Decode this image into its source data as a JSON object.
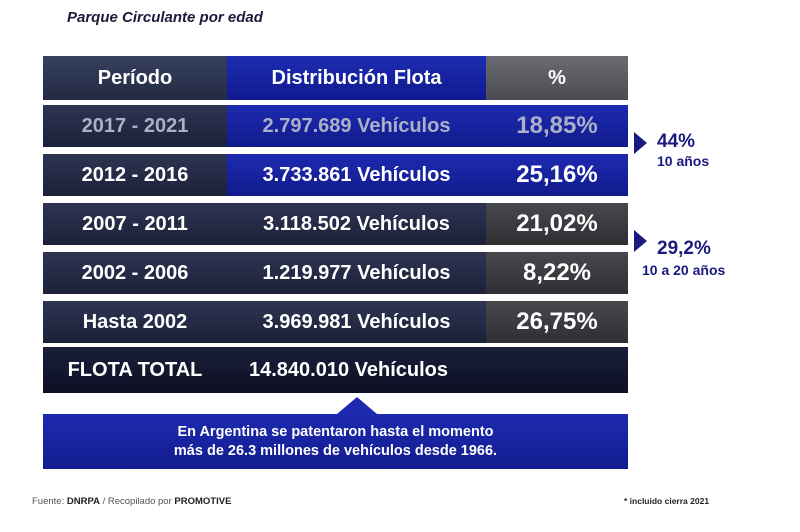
{
  "title": "Parque Circulante por edad",
  "headers": {
    "periodo": "Período",
    "distribucion": "Distribución Flota",
    "pct": "%"
  },
  "rows": [
    {
      "period": "2017 - 2021",
      "vehicles": "2.797.689 Vehículos",
      "pct": "18,85%"
    },
    {
      "period": "2012 - 2016",
      "vehicles": "3.733.861 Vehículos",
      "pct": "25,16%"
    },
    {
      "period": "2007 - 2011",
      "vehicles": "3.118.502 Vehículos",
      "pct": "21,02%"
    },
    {
      "period": "2002 - 2006",
      "vehicles": "1.219.977 Vehículos",
      "pct": "8,22%"
    },
    {
      "period": "Hasta 2002",
      "vehicles": "3.969.981 Vehículos",
      "pct": "26,75%"
    }
  ],
  "total": {
    "label": "FLOTA TOTAL",
    "value": "14.840.010 Vehículos"
  },
  "side_notes": [
    {
      "pct": "44%",
      "label": "10 años"
    },
    {
      "pct": "29,2%",
      "label": "10 a 20 años"
    }
  ],
  "note": {
    "line1": "En Argentina se patentaron hasta el momento",
    "line2": "más de 26.3 millones de vehículos desde 1966."
  },
  "footer": {
    "source_prefix": "Fuente:",
    "source_name": "DNRPA",
    "compiled_prefix": "/ Recopilado por",
    "compiled_name": "PROMOTIVE",
    "footnote": "* incluido cierra 2021"
  },
  "colors": {
    "accent_blue": "#1a2ab0",
    "dark_navy": "#1c2139",
    "side_text": "#1a1a80"
  }
}
